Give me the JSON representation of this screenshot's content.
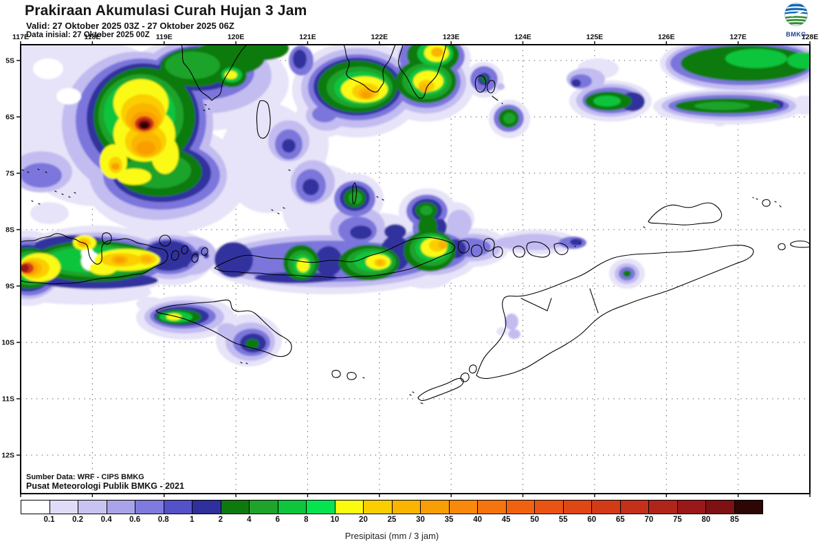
{
  "header": {
    "title": "Prakiraan Akumulasi Curah Hujan 3 Jam",
    "valid": "Valid: 27 Oktober 2025 03Z - 27 Oktober 2025 06Z",
    "init": "Data inisial: 27 Oktober 2025 00Z",
    "logo_text": "BMKG"
  },
  "map": {
    "lon_labels": [
      "117E",
      "118E",
      "119E",
      "120E",
      "121E",
      "122E",
      "123E",
      "124E",
      "125E",
      "126E",
      "127E",
      "128E"
    ],
    "lat_labels": [
      "5S",
      "6S",
      "7S",
      "8S",
      "9S",
      "10S",
      "11S",
      "12S"
    ],
    "source_line1": "Sumber Data: WRF - CIPS BMKG",
    "source_line2": "Pusat Meteorologi Publik BMKG -  2021"
  },
  "colorbar": {
    "caption": "Presipitasi (mm / 3 jam)",
    "tick_labels": [
      "0.1",
      "0.2",
      "0.4",
      "0.6",
      "0.8",
      "1",
      "2",
      "4",
      "6",
      "8",
      "10",
      "20",
      "25",
      "30",
      "35",
      "40",
      "45",
      "50",
      "55",
      "60",
      "65",
      "70",
      "75",
      "80",
      "85"
    ],
    "segment_colors": [
      "#FFFFFF",
      "#E0DCF7",
      "#C9C3F1",
      "#A9A3E9",
      "#7F7ADD",
      "#5551C8",
      "#2F2F9E",
      "#0E7A0E",
      "#1FA32B",
      "#0FC53C",
      "#05E34F",
      "#FBFB10",
      "#FBCE00",
      "#FBB400",
      "#FA9E05",
      "#F8890A",
      "#F5740D",
      "#F0620F",
      "#E95412",
      "#DF4715",
      "#D33B17",
      "#C43019",
      "#B0251A",
      "#9A1819",
      "#7E1113",
      "#2D0605"
    ],
    "units": "mm / 3 jam"
  },
  "legend_semantics": {
    "low_color": "#E0DCF7",
    "mid_color": "#0FC53C",
    "high_color": "#FBFB10",
    "extreme_color": "#2D0605"
  }
}
